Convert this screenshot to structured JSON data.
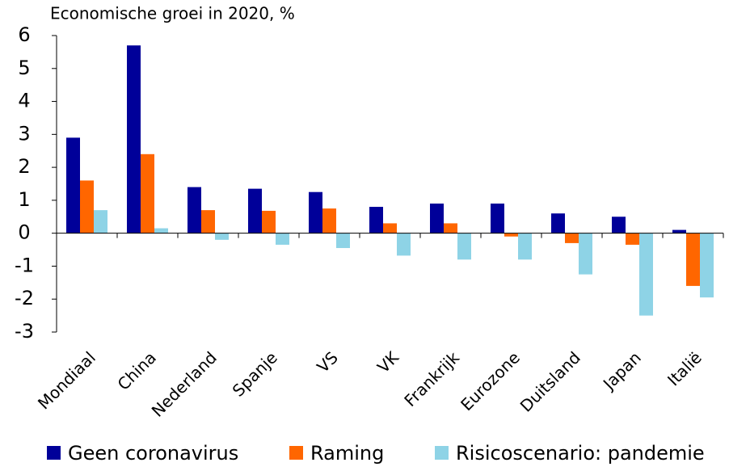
{
  "chart_data": {
    "type": "bar",
    "title": "Economische groei in 2020, %",
    "categories": [
      "Mondiaal",
      "China",
      "Nederland",
      "Spanje",
      "VS",
      "VK",
      "Frankrijk",
      "Eurozone",
      "Duitsland",
      "Japan",
      "Italië"
    ],
    "series": [
      {
        "name": "Geen coronavirus",
        "color": "#000099",
        "values": [
          2.9,
          5.7,
          1.4,
          1.35,
          1.25,
          0.8,
          0.9,
          0.9,
          0.6,
          0.5,
          0.1
        ]
      },
      {
        "name": "Raming",
        "color": "#ff6600",
        "values": [
          1.6,
          2.4,
          0.7,
          0.68,
          0.75,
          0.3,
          0.3,
          -0.1,
          -0.3,
          -0.35,
          -1.6
        ]
      },
      {
        "name": "Risicoscenario: pandemie",
        "color": "#8ed3e6",
        "values": [
          0.7,
          0.15,
          -0.2,
          -0.35,
          -0.45,
          -0.68,
          -0.8,
          -0.8,
          -1.25,
          -2.5,
          -1.95
        ]
      }
    ],
    "ylim": [
      -3,
      6
    ],
    "yticks": [
      -3,
      -2,
      -1,
      0,
      1,
      2,
      3,
      4,
      5,
      6
    ],
    "grid": false,
    "legend": "bottom"
  }
}
